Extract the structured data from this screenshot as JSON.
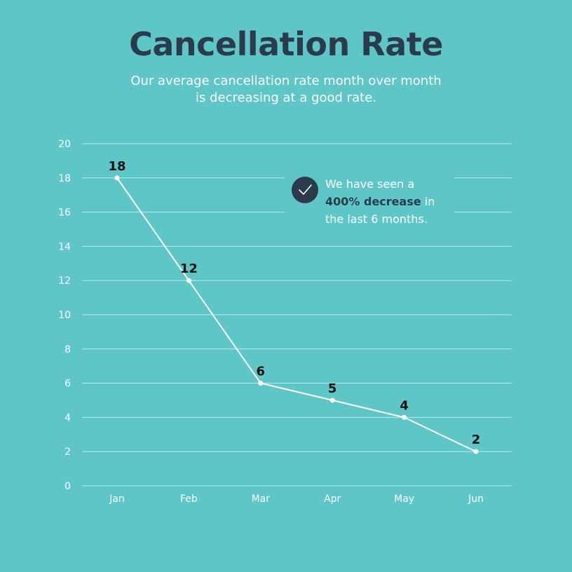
{
  "header": {
    "title": "Cancellation Rate",
    "subtitle": "Our average cancellation rate month over month is decreasing at a good rate."
  },
  "callout": {
    "icon": "check-icon",
    "text_before": "We have seen a",
    "text_bold": "400% decrease",
    "text_after_inline": " in",
    "text_line3": "the last 6 months."
  },
  "colors": {
    "background": "#5ec6c6",
    "title": "#2a3c4c",
    "line": "#ffffff",
    "grid": "#b8ecec",
    "data_label": "#111111"
  },
  "chart_data": {
    "type": "line",
    "categories": [
      "Jan",
      "Feb",
      "Mar",
      "Apr",
      "May",
      "Jun"
    ],
    "values": [
      18,
      12,
      6,
      5,
      4,
      2
    ],
    "data_labels": [
      "18",
      "12",
      "6",
      "5",
      "4",
      "2"
    ],
    "y_ticks": [
      "0",
      "2",
      "4",
      "6",
      "8",
      "10",
      "12",
      "14",
      "16",
      "18",
      "20"
    ],
    "ylim": [
      0,
      20
    ],
    "grid": true,
    "legend": "none"
  }
}
